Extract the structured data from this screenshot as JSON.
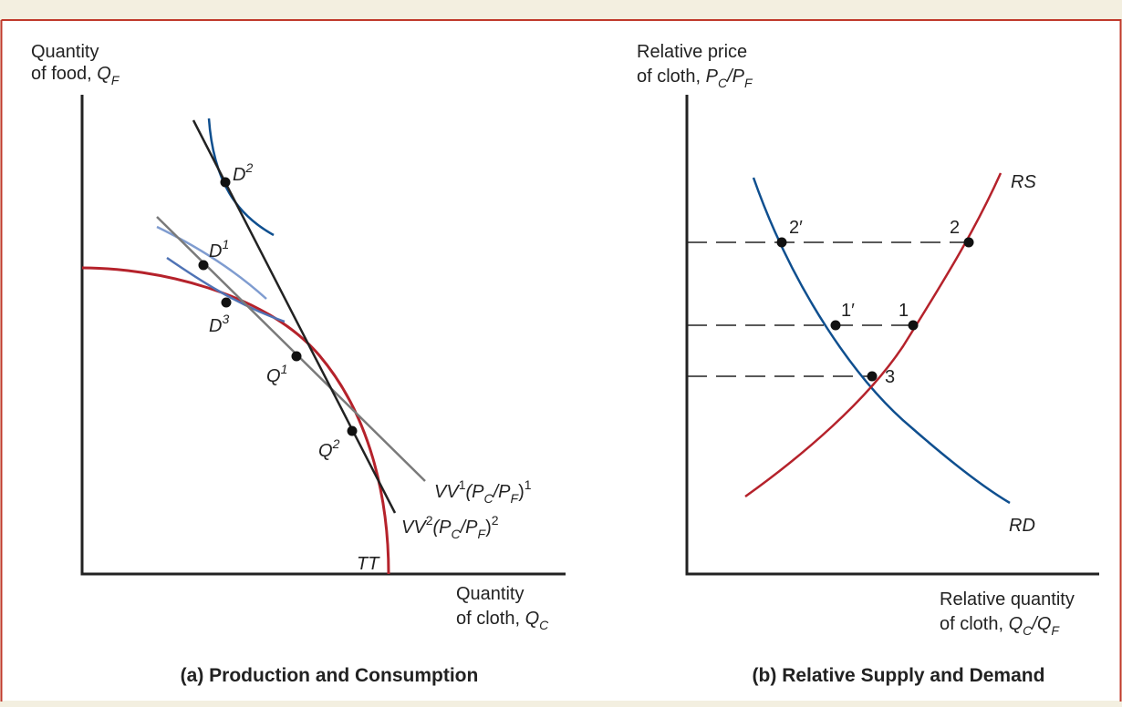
{
  "panel_a": {
    "y_title_line1": "Quantity",
    "y_title_line2": "of food,",
    "y_title_var": "Q",
    "y_title_sub": "F",
    "x_title_line1": "Quantity",
    "x_title_line2": "of cloth,",
    "x_title_var": "Q",
    "x_title_sub": "C",
    "caption": "(a) Production and Consumption",
    "tt_label": "TT",
    "vv1_label": {
      "base": "VV",
      "sup": "1",
      "open": "(P",
      "sub1": "C",
      "mid": "/P",
      "sub2": "F",
      "close": ")",
      "sup2": "1"
    },
    "vv2_label": {
      "base": "VV",
      "sup": "2",
      "open": "(P",
      "sub1": "C",
      "mid": "/P",
      "sub2": "F",
      "close": ")",
      "sup2": "2"
    },
    "points": [
      {
        "base": "D",
        "sup": "2"
      },
      {
        "base": "D",
        "sup": "1"
      },
      {
        "base": "D",
        "sup": "3"
      },
      {
        "base": "Q",
        "sup": "1"
      },
      {
        "base": "Q",
        "sup": "2"
      }
    ]
  },
  "panel_b": {
    "y_title_line1": "Relative price",
    "y_title_line2": "of cloth,",
    "y_title_var": "P",
    "y_title_sub1": "C",
    "y_title_mid": "/P",
    "y_title_sub2": "F",
    "x_title_line1": "Relative quantity",
    "x_title_line2": "of cloth,",
    "x_title_var": "Q",
    "x_title_sub1": "C",
    "x_title_mid": "/Q",
    "x_title_sub2": "F",
    "caption": "(b) Relative Supply and Demand",
    "rs_label": "RS",
    "rd_label": "RD",
    "points": [
      "2′",
      "2",
      "1′",
      "1",
      "3"
    ]
  },
  "colors": {
    "background": "#f3efe0",
    "frame": "#c0392b",
    "ppf_red": "#b5222b",
    "demand_blue": "#0f4f8f",
    "indiff_light": "#7f9cd0",
    "indiff_mid": "#4f73b5",
    "budget_gray": "#7a7a7a",
    "axis": "#222222"
  }
}
